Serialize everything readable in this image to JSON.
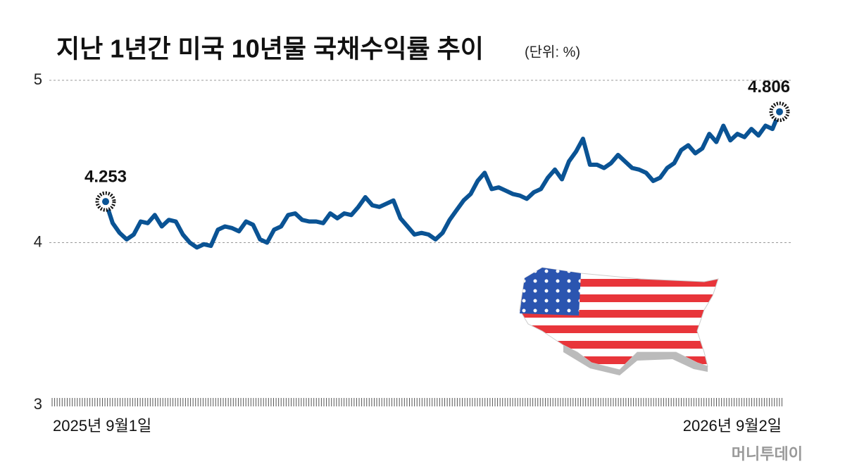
{
  "chart_data": {
    "type": "line",
    "title": "지난 1년간 미국 10년물 국채수익률 추이",
    "subtitle": "(단위: %)",
    "source": "머니투데이",
    "color": "#0a5394",
    "ylim": [
      3,
      5
    ],
    "yticks": [
      3,
      4,
      5
    ],
    "grid": true,
    "categories": [
      "2025년 9월1일",
      null,
      null,
      null,
      null,
      null,
      null,
      null,
      null,
      null,
      null,
      null,
      null,
      null,
      null,
      null,
      null,
      null,
      null,
      null,
      null,
      null,
      null,
      null,
      null,
      null,
      null,
      null,
      null,
      null,
      null,
      null,
      null,
      null,
      null,
      null,
      null,
      null,
      null,
      null,
      null,
      null,
      null,
      null,
      null,
      null,
      null,
      null,
      null,
      null,
      null,
      null,
      null,
      null,
      null,
      null,
      null,
      null,
      null,
      null,
      null,
      null,
      null,
      null,
      null,
      null,
      null,
      null,
      null,
      null,
      null,
      null,
      null,
      null,
      null,
      null,
      null,
      null,
      null,
      null,
      null,
      null,
      null,
      null,
      null,
      null,
      null,
      null,
      null,
      null,
      null,
      null,
      null,
      null,
      null,
      null,
      "2026년 9월2일"
    ],
    "values": [
      4.253,
      4.12,
      4.06,
      4.02,
      4.05,
      4.13,
      4.12,
      4.17,
      4.1,
      4.14,
      4.13,
      4.05,
      4.0,
      3.97,
      3.99,
      3.98,
      4.08,
      4.1,
      4.09,
      4.07,
      4.13,
      4.11,
      4.02,
      4.0,
      4.08,
      4.1,
      4.17,
      4.18,
      4.14,
      4.13,
      4.13,
      4.12,
      4.18,
      4.15,
      4.18,
      4.17,
      4.22,
      4.28,
      4.23,
      4.22,
      4.24,
      4.26,
      4.15,
      4.1,
      4.05,
      4.06,
      4.05,
      4.02,
      4.06,
      4.14,
      4.2,
      4.26,
      4.3,
      4.38,
      4.43,
      4.33,
      4.34,
      4.32,
      4.3,
      4.29,
      4.27,
      4.31,
      4.33,
      4.4,
      4.45,
      4.39,
      4.5,
      4.56,
      4.64,
      4.48,
      4.48,
      4.46,
      4.49,
      4.54,
      4.5,
      4.46,
      4.45,
      4.43,
      4.38,
      4.4,
      4.46,
      4.49,
      4.57,
      4.6,
      4.55,
      4.58,
      4.67,
      4.62,
      4.72,
      4.63,
      4.67,
      4.65,
      4.7,
      4.66,
      4.72,
      4.7,
      4.806
    ]
  }
}
